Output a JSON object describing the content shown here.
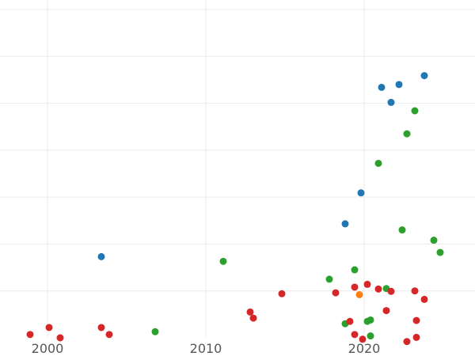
{
  "chart_data": {
    "type": "scatter",
    "title": "",
    "xlabel": "",
    "ylabel": "",
    "xlim": [
      1997,
      2027
    ],
    "ylim": [
      0,
      7
    ],
    "grid": true,
    "legend": "none",
    "x_ticks": [
      2000,
      2010,
      2020
    ],
    "x_tick_labels": [
      "2000",
      "2010",
      "2020"
    ],
    "y_gridlines": [
      1,
      2,
      3,
      4,
      5,
      6,
      7
    ],
    "series": [
      {
        "color": "#1f77b4",
        "points": [
          {
            "x": 2003.4,
            "y": 1.73
          },
          {
            "x": 2018.8,
            "y": 2.43
          },
          {
            "x": 2019.8,
            "y": 3.09
          },
          {
            "x": 2021.1,
            "y": 5.34
          },
          {
            "x": 2021.7,
            "y": 5.02
          },
          {
            "x": 2022.2,
            "y": 5.4
          },
          {
            "x": 2023.8,
            "y": 5.59
          }
        ]
      },
      {
        "color": "#2ca02c",
        "points": [
          {
            "x": 2006.8,
            "y": 0.13
          },
          {
            "x": 2011.1,
            "y": 1.63
          },
          {
            "x": 2017.8,
            "y": 1.25
          },
          {
            "x": 2018.8,
            "y": 0.3
          },
          {
            "x": 2019.4,
            "y": 1.45
          },
          {
            "x": 2020.2,
            "y": 0.35
          },
          {
            "x": 2020.4,
            "y": 0.38
          },
          {
            "x": 2020.4,
            "y": 0.04
          },
          {
            "x": 2020.9,
            "y": 3.72
          },
          {
            "x": 2021.4,
            "y": 1.05
          },
          {
            "x": 2022.4,
            "y": 2.3
          },
          {
            "x": 2022.7,
            "y": 4.35
          },
          {
            "x": 2023.2,
            "y": 4.84
          },
          {
            "x": 2024.4,
            "y": 2.08
          },
          {
            "x": 2024.8,
            "y": 1.82
          }
        ]
      },
      {
        "color": "#d62728",
        "points": [
          {
            "x": 1998.9,
            "y": 0.07
          },
          {
            "x": 2000.1,
            "y": 0.22
          },
          {
            "x": 2000.8,
            "y": 0.0
          },
          {
            "x": 2003.4,
            "y": 0.22
          },
          {
            "x": 2003.9,
            "y": 0.07
          },
          {
            "x": 2012.8,
            "y": 0.55
          },
          {
            "x": 2013.0,
            "y": 0.42
          },
          {
            "x": 2014.8,
            "y": 0.94
          },
          {
            "x": 2018.2,
            "y": 0.96
          },
          {
            "x": 2019.1,
            "y": 0.35
          },
          {
            "x": 2019.4,
            "y": 1.08
          },
          {
            "x": 2019.4,
            "y": 0.07
          },
          {
            "x": 2019.9,
            "y": -0.03
          },
          {
            "x": 2020.2,
            "y": 1.14
          },
          {
            "x": 2020.9,
            "y": 1.04
          },
          {
            "x": 2021.4,
            "y": 0.58
          },
          {
            "x": 2021.7,
            "y": 0.99
          },
          {
            "x": 2022.7,
            "y": -0.08
          },
          {
            "x": 2023.2,
            "y": 1.0
          },
          {
            "x": 2023.3,
            "y": 0.37
          },
          {
            "x": 2023.3,
            "y": 0.01
          },
          {
            "x": 2023.8,
            "y": 0.82
          }
        ]
      },
      {
        "color": "#ff7f0e",
        "points": [
          {
            "x": 2019.7,
            "y": 0.92
          }
        ]
      }
    ]
  }
}
